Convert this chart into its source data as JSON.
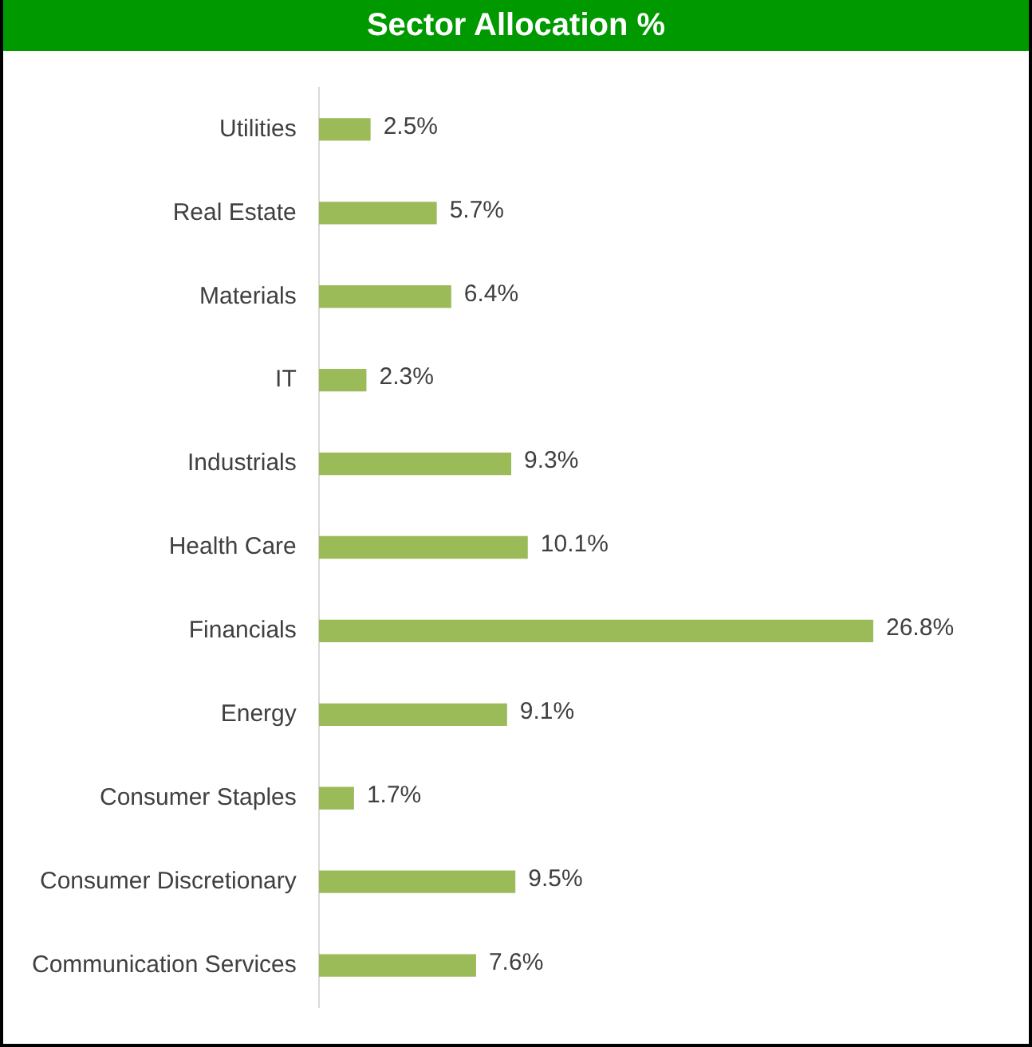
{
  "chart_data": {
    "type": "bar",
    "title": "Sector Allocation %",
    "orientation": "horizontal",
    "categories": [
      "Utilities",
      "Real Estate",
      "Materials",
      "IT",
      "Industrials",
      "Health Care",
      "Financials",
      "Energy",
      "Consumer Staples",
      "Consumer Discretionary",
      "Communication Services"
    ],
    "values": [
      2.5,
      5.7,
      6.4,
      2.3,
      9.3,
      10.1,
      26.8,
      9.1,
      1.7,
      9.5,
      7.6
    ],
    "value_labels": [
      "2.5%",
      "5.7%",
      "6.4%",
      "2.3%",
      "9.3%",
      "10.1%",
      "26.8%",
      "9.1%",
      "1.7%",
      "9.5%",
      "7.6%"
    ],
    "color": "#9bbb59",
    "grid": false,
    "legend": false
  }
}
